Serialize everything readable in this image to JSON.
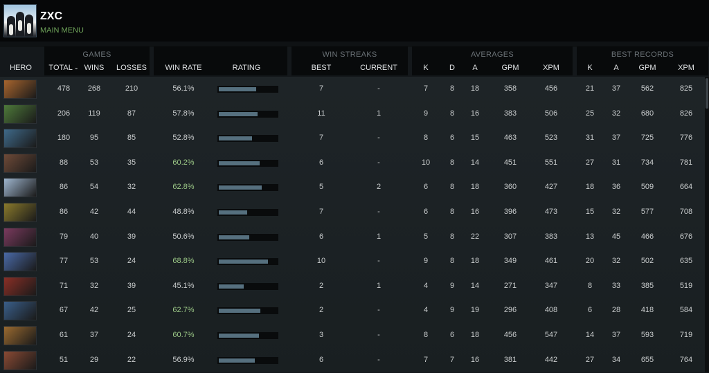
{
  "profile": {
    "name": "ZXC",
    "menu_link": "MAIN MENU"
  },
  "groups": {
    "games": "GAMES",
    "win_streaks": "WIN STREAKS",
    "averages": "AVERAGES",
    "best_records": "BEST RECORDS"
  },
  "columns": {
    "hero": "HERO",
    "total": "TOTAL",
    "sort_arrow": "⌄",
    "wins": "WINS",
    "losses": "LOSSES",
    "win_rate": "WIN RATE",
    "rating": "RATING",
    "best": "BEST",
    "current": "CURRENT",
    "k": "K",
    "d": "D",
    "a": "A",
    "gpm": "GPM",
    "xpm": "XPM",
    "best_k": "K",
    "best_a": "A",
    "best_gpm": "GPM",
    "best_xpm": "XPM"
  },
  "colors": {
    "win_rate_high": "#9cc987",
    "rating_bar": "#56707f",
    "menu_link": "#6fa35a"
  },
  "rows": [
    {
      "total": "478",
      "wins": "268",
      "losses": "210",
      "win_rate": "56.1%",
      "rating": 0.64,
      "best": "7",
      "current": "-",
      "k": "7",
      "d": "8",
      "a": "18",
      "gpm": "358",
      "xpm": "456",
      "best_k": "21",
      "best_a": "37",
      "best_gpm": "562",
      "best_xpm": "825",
      "hero_color": "#a8652e",
      "high": false
    },
    {
      "total": "206",
      "wins": "119",
      "losses": "87",
      "win_rate": "57.8%",
      "rating": 0.67,
      "best": "11",
      "current": "1",
      "k": "9",
      "d": "8",
      "a": "16",
      "gpm": "383",
      "xpm": "506",
      "best_k": "25",
      "best_a": "32",
      "best_gpm": "680",
      "best_xpm": "826",
      "hero_color": "#4e7a3a",
      "high": false
    },
    {
      "total": "180",
      "wins": "95",
      "losses": "85",
      "win_rate": "52.8%",
      "rating": 0.57,
      "best": "7",
      "current": "-",
      "k": "8",
      "d": "6",
      "a": "15",
      "gpm": "463",
      "xpm": "523",
      "best_k": "31",
      "best_a": "37",
      "best_gpm": "725",
      "best_xpm": "776",
      "hero_color": "#3f6a8a",
      "high": false
    },
    {
      "total": "88",
      "wins": "53",
      "losses": "35",
      "win_rate": "60.2%",
      "rating": 0.7,
      "best": "6",
      "current": "-",
      "k": "10",
      "d": "8",
      "a": "14",
      "gpm": "451",
      "xpm": "551",
      "best_k": "27",
      "best_a": "31",
      "best_gpm": "734",
      "best_xpm": "781",
      "hero_color": "#6e4a38",
      "high": true
    },
    {
      "total": "86",
      "wins": "54",
      "losses": "32",
      "win_rate": "62.8%",
      "rating": 0.74,
      "best": "5",
      "current": "2",
      "k": "6",
      "d": "8",
      "a": "18",
      "gpm": "360",
      "xpm": "427",
      "best_k": "18",
      "best_a": "36",
      "best_gpm": "509",
      "best_xpm": "664",
      "hero_color": "#9fb6cf",
      "high": true
    },
    {
      "total": "86",
      "wins": "42",
      "losses": "44",
      "win_rate": "48.8%",
      "rating": 0.49,
      "best": "7",
      "current": "-",
      "k": "6",
      "d": "8",
      "a": "16",
      "gpm": "396",
      "xpm": "473",
      "best_k": "15",
      "best_a": "32",
      "best_gpm": "577",
      "best_xpm": "708",
      "hero_color": "#8a7a2c",
      "high": false
    },
    {
      "total": "79",
      "wins": "40",
      "losses": "39",
      "win_rate": "50.6%",
      "rating": 0.52,
      "best": "6",
      "current": "1",
      "k": "5",
      "d": "8",
      "a": "22",
      "gpm": "307",
      "xpm": "383",
      "best_k": "13",
      "best_a": "45",
      "best_gpm": "466",
      "best_xpm": "676",
      "hero_color": "#7a3a5e",
      "high": false
    },
    {
      "total": "77",
      "wins": "53",
      "losses": "24",
      "win_rate": "68.8%",
      "rating": 0.84,
      "best": "10",
      "current": "-",
      "k": "9",
      "d": "8",
      "a": "18",
      "gpm": "349",
      "xpm": "461",
      "best_k": "20",
      "best_a": "32",
      "best_gpm": "502",
      "best_xpm": "635",
      "hero_color": "#4a6aa8",
      "high": true
    },
    {
      "total": "71",
      "wins": "32",
      "losses": "39",
      "win_rate": "45.1%",
      "rating": 0.43,
      "best": "2",
      "current": "1",
      "k": "4",
      "d": "9",
      "a": "14",
      "gpm": "271",
      "xpm": "347",
      "best_k": "8",
      "best_a": "33",
      "best_gpm": "385",
      "best_xpm": "519",
      "hero_color": "#8a2f26",
      "high": false
    },
    {
      "total": "67",
      "wins": "42",
      "losses": "25",
      "win_rate": "62.7%",
      "rating": 0.72,
      "best": "2",
      "current": "-",
      "k": "4",
      "d": "9",
      "a": "19",
      "gpm": "296",
      "xpm": "408",
      "best_k": "6",
      "best_a": "28",
      "best_gpm": "418",
      "best_xpm": "584",
      "hero_color": "#3a5f8a",
      "high": true
    },
    {
      "total": "61",
      "wins": "37",
      "losses": "24",
      "win_rate": "60.7%",
      "rating": 0.69,
      "best": "3",
      "current": "-",
      "k": "8",
      "d": "6",
      "a": "18",
      "gpm": "456",
      "xpm": "547",
      "best_k": "14",
      "best_a": "37",
      "best_gpm": "593",
      "best_xpm": "719",
      "hero_color": "#9a6a30",
      "high": true
    },
    {
      "total": "51",
      "wins": "29",
      "losses": "22",
      "win_rate": "56.9%",
      "rating": 0.62,
      "best": "6",
      "current": "-",
      "k": "7",
      "d": "7",
      "a": "16",
      "gpm": "381",
      "xpm": "442",
      "best_k": "27",
      "best_a": "34",
      "best_gpm": "655",
      "best_xpm": "764",
      "hero_color": "#8a4a34",
      "high": false
    }
  ]
}
